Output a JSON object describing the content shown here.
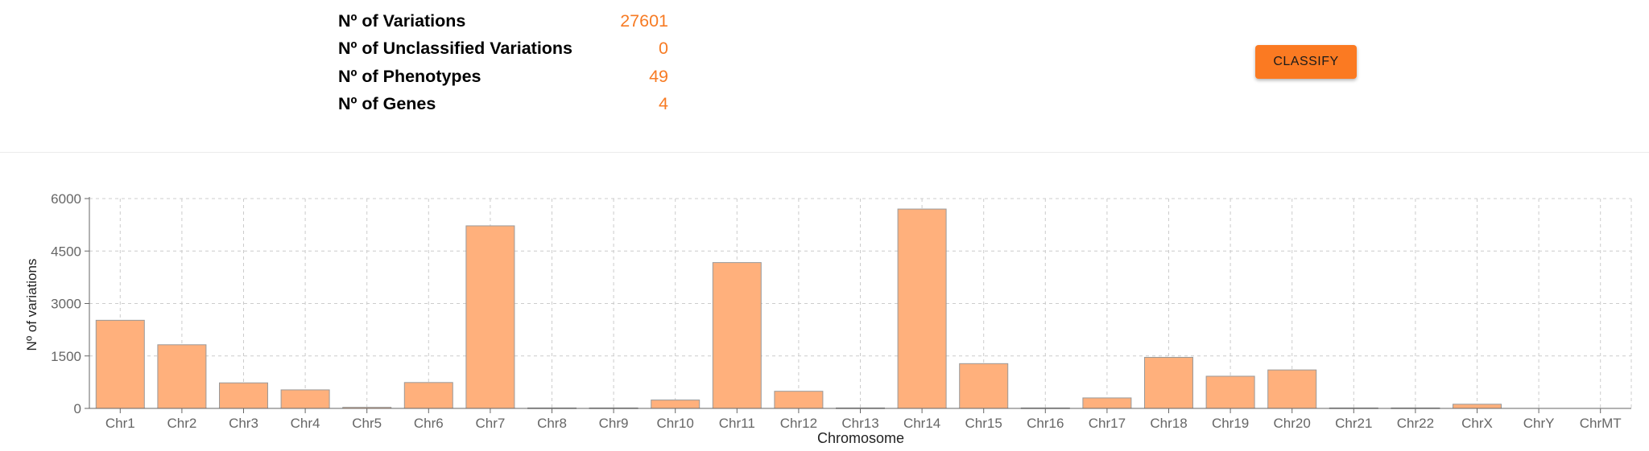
{
  "stats": [
    {
      "label": "Nº of Variations",
      "value": "27601"
    },
    {
      "label": "Nº of Unclassified Variations",
      "value": "0"
    },
    {
      "label": "Nº of Phenotypes",
      "value": "49"
    },
    {
      "label": "Nº of Genes",
      "value": "4"
    }
  ],
  "classify_button": {
    "label": "CLASSIFY"
  },
  "colors": {
    "accent": "#fb7a22",
    "value_text": "#f77b24",
    "bar_fill": "#ffb07c",
    "bar_stroke": "#999999"
  },
  "chart_data": {
    "type": "bar",
    "xlabel": "Chromosome",
    "ylabel": "Nº of variations",
    "ylim": [
      0,
      6000
    ],
    "yticks": [
      "0",
      "1500",
      "3000",
      "4500",
      "6000"
    ],
    "grid": true,
    "categories": [
      "Chr1",
      "Chr2",
      "Chr3",
      "Chr4",
      "Chr5",
      "Chr6",
      "Chr7",
      "Chr8",
      "Chr9",
      "Chr10",
      "Chr11",
      "Chr12",
      "Chr13",
      "Chr14",
      "Chr15",
      "Chr16",
      "Chr17",
      "Chr18",
      "Chr19",
      "Chr20",
      "Chr21",
      "Chr22",
      "ChrX",
      "ChrY",
      "ChrMT"
    ],
    "values": [
      2520,
      1820,
      730,
      530,
      30,
      740,
      5220,
      15,
      15,
      240,
      4170,
      490,
      15,
      5700,
      1280,
      15,
      300,
      1460,
      920,
      1100,
      15,
      15,
      120,
      0,
      0
    ]
  }
}
